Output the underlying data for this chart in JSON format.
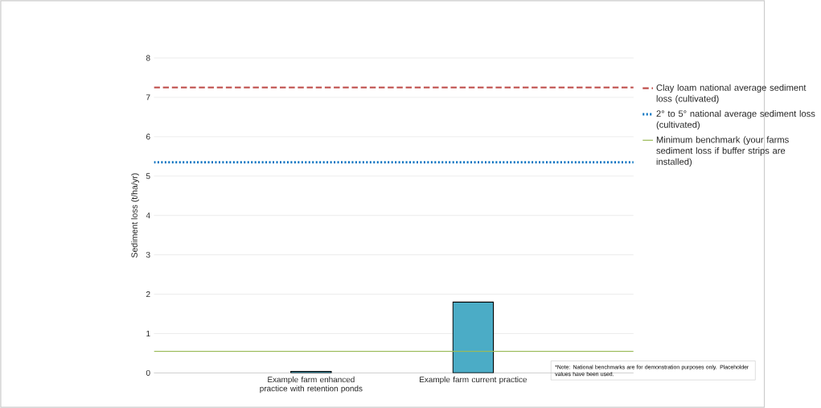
{
  "chart_data": {
    "type": "bar",
    "ylabel": "Sediment loss (t/ha/yr)",
    "categories": [
      "Example farm enhanced practice with retention ponds",
      "Example farm current practice"
    ],
    "values": [
      0.04,
      1.8
    ],
    "colors": [
      "#4bacc6",
      "#4bacc6"
    ],
    "ylim": [
      0,
      8
    ],
    "yticks": [
      0,
      1,
      2,
      3,
      4,
      5,
      6,
      7,
      8
    ],
    "grid": "y",
    "legend": "right",
    "ref_lines": [
      {
        "axis": "y",
        "value": 7.25,
        "label": "Clay loam national average sediment loss (cultivated)",
        "color": "#c0504d",
        "line_style": "dashed"
      },
      {
        "axis": "y",
        "value": 5.35,
        "label": "2° to 5° national average sediment loss (cultivated)",
        "color": "#0070c0",
        "line_style": "dotted"
      },
      {
        "axis": "y",
        "value": 0.55,
        "label": "Minimum benchmark (your farms sediment loss if buffer strips are installed)",
        "color": "#9bbb59",
        "line_style": "solid"
      }
    ],
    "annotations": [
      "*Note: National benchmarks are for demonstration purposes only. Placeholder values have been used."
    ]
  }
}
